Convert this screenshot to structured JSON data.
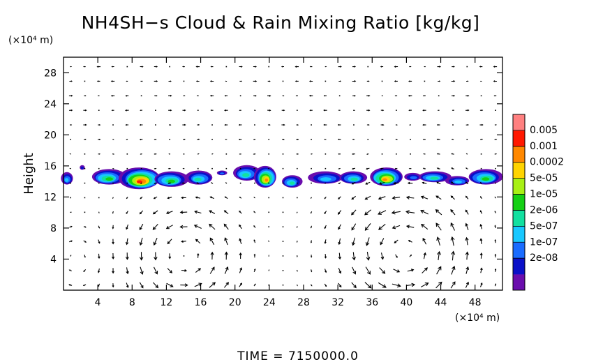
{
  "chart_data": {
    "type": "heatmap",
    "title": "NH4SH−s Cloud & Rain Mixing Ratio [kg/kg]",
    "ylabel": "Height",
    "y_unit": "(×10⁴ m)",
    "x_unit": "(×10⁴ m)",
    "xlim": [
      0,
      51.2
    ],
    "ylim": [
      0,
      30
    ],
    "x_ticks": [
      "4",
      "8",
      "12",
      "16",
      "20",
      "24",
      "28",
      "32",
      "36",
      "40",
      "44",
      "48"
    ],
    "x_tick_values": [
      4,
      8,
      12,
      16,
      20,
      24,
      28,
      32,
      36,
      40,
      44,
      48
    ],
    "y_ticks": [
      "4",
      "8",
      "12",
      "16",
      "20",
      "24",
      "28"
    ],
    "y_tick_values": [
      4,
      8,
      12,
      16,
      20,
      24,
      28
    ],
    "colorbar": {
      "labels": [
        "0.005",
        "0.001",
        "0.0002",
        "5e-05",
        "1e-05",
        "2e-06",
        "5e-07",
        "1e-07",
        "2e-08"
      ],
      "colors": [
        "#6a0dad",
        "#0a10c8",
        "#1a6cff",
        "#18c8ff",
        "#12e0a0",
        "#14d014",
        "#a8f014",
        "#ffd400",
        "#ff8800",
        "#ff1800",
        "#ff8080"
      ]
    },
    "overlay": "wind vector arrows",
    "cloud_layer_altitude": [
      13,
      16
    ],
    "cloud_features": [
      {
        "x": 0.4,
        "y": 14.4,
        "wx": 0.7,
        "wy": 0.8,
        "level": 3
      },
      {
        "x": 2.2,
        "y": 15.8,
        "wx": 0.3,
        "wy": 0.3,
        "level": 1
      },
      {
        "x": 5.2,
        "y": 14.6,
        "wx": 2.0,
        "wy": 1.0,
        "level": 5
      },
      {
        "x": 9.0,
        "y": 14.4,
        "wx": 2.4,
        "wy": 1.4,
        "level": 9
      },
      {
        "x": 12.5,
        "y": 14.3,
        "wx": 2.0,
        "wy": 1.0,
        "level": 5
      },
      {
        "x": 15.8,
        "y": 14.5,
        "wx": 1.6,
        "wy": 0.9,
        "level": 4
      },
      {
        "x": 18.5,
        "y": 15.1,
        "wx": 0.6,
        "wy": 0.3,
        "level": 2
      },
      {
        "x": 21.3,
        "y": 15.1,
        "wx": 1.6,
        "wy": 1.0,
        "level": 4
      },
      {
        "x": 23.6,
        "y": 14.6,
        "wx": 1.3,
        "wy": 1.4,
        "level": 8
      },
      {
        "x": 26.6,
        "y": 14.0,
        "wx": 1.2,
        "wy": 0.8,
        "level": 4
      },
      {
        "x": 30.6,
        "y": 14.5,
        "wx": 2.0,
        "wy": 0.8,
        "level": 3
      },
      {
        "x": 33.8,
        "y": 14.5,
        "wx": 1.6,
        "wy": 0.8,
        "level": 4
      },
      {
        "x": 37.6,
        "y": 14.6,
        "wx": 1.9,
        "wy": 1.2,
        "level": 8
      },
      {
        "x": 40.8,
        "y": 14.6,
        "wx": 1.0,
        "wy": 0.5,
        "level": 2
      },
      {
        "x": 43.2,
        "y": 14.6,
        "wx": 1.9,
        "wy": 0.7,
        "level": 4
      },
      {
        "x": 46.0,
        "y": 14.1,
        "wx": 1.4,
        "wy": 0.6,
        "level": 3
      },
      {
        "x": 49.2,
        "y": 14.6,
        "wx": 2.0,
        "wy": 1.0,
        "level": 5
      }
    ],
    "circulations": [
      {
        "x": 14.5,
        "y": 4.5,
        "radius": 6.0,
        "strength": 1.0
      },
      {
        "x": 39.5,
        "y": 5.0,
        "radius": 7.0,
        "strength": 1.0
      },
      {
        "x": 1.0,
        "y": 4.0,
        "radius": 4.0,
        "strength": -0.6
      }
    ]
  },
  "footer": {
    "time_label": "TIME  =  7150000.0"
  }
}
